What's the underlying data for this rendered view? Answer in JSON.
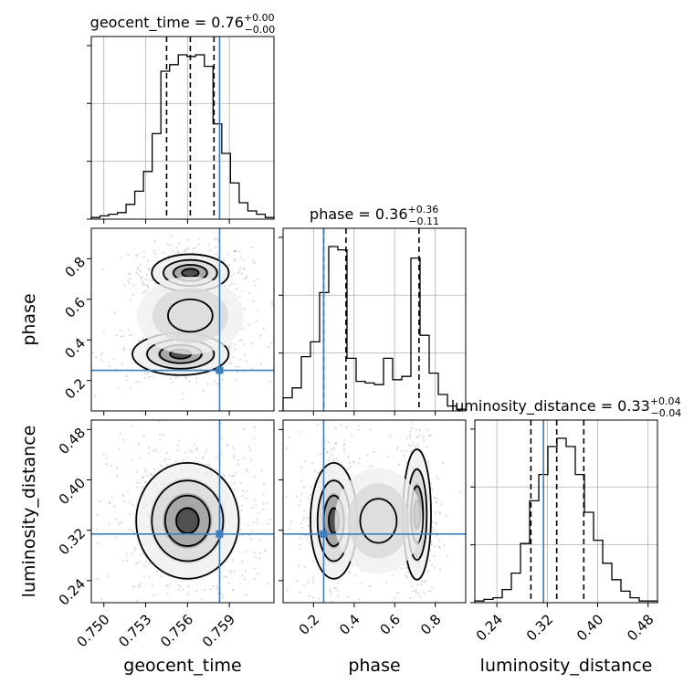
{
  "chart_data": {
    "type": "corner",
    "parameters": [
      {
        "name": "geocent_time",
        "axis_label": "geocent_time",
        "title": {
          "main": "geocent_time = 0.76",
          "plus": "+0.00",
          "minus": "−0.00"
        },
        "range": [
          0.7491,
          0.7622
        ],
        "ticks": [
          "0.750",
          "0.753",
          "0.756",
          "0.759"
        ],
        "tick_values": [
          0.75,
          0.753,
          0.756,
          0.759
        ],
        "quantiles": [
          0.7545,
          0.7562,
          0.7579
        ],
        "truth": 0.7583,
        "hist_counts": [
          1,
          2,
          3,
          4,
          9,
          17,
          29,
          52,
          90,
          94,
          100,
          99,
          100,
          93,
          58,
          40,
          22,
          10,
          5,
          3,
          1
        ]
      },
      {
        "name": "phase",
        "axis_label": "phase",
        "title": {
          "main": "phase = 0.36",
          "plus": "+0.36",
          "minus": "−0.11"
        },
        "range": [
          0.05,
          0.95
        ],
        "ticks": [
          "0.2",
          "0.4",
          "0.6",
          "0.8"
        ],
        "tick_values": [
          0.2,
          0.4,
          0.6,
          0.8
        ],
        "quantiles": [
          0.25,
          0.36,
          0.72
        ],
        "truth": 0.25,
        "hist_counts": [
          8,
          14,
          33,
          42,
          72,
          100,
          98,
          32,
          18,
          17,
          16,
          32,
          19,
          21,
          93,
          46,
          23,
          10,
          3,
          1
        ]
      },
      {
        "name": "luminosity_distance",
        "axis_label": "luminosity_distance",
        "title": {
          "main": "luminosity_distance = 0.33",
          "plus": "+0.04",
          "minus": "−0.04"
        },
        "range": [
          0.205,
          0.495
        ],
        "ticks": [
          "0.24",
          "0.32",
          "0.40",
          "0.48"
        ],
        "tick_values": [
          0.24,
          0.32,
          0.4,
          0.48
        ],
        "quantiles": [
          0.294,
          0.335,
          0.378
        ],
        "truth": 0.314,
        "hist_counts": [
          1,
          2,
          3,
          8,
          18,
          36,
          62,
          78,
          95,
          100,
          95,
          78,
          55,
          38,
          24,
          14,
          7,
          3,
          1,
          1
        ]
      }
    ],
    "ylim_hist": [
      0,
      1.0
    ],
    "grid": true,
    "colors": {
      "truth": "#3b7dbd",
      "quantile": "#000000",
      "histogram": "#000000",
      "density": "#000000"
    }
  }
}
